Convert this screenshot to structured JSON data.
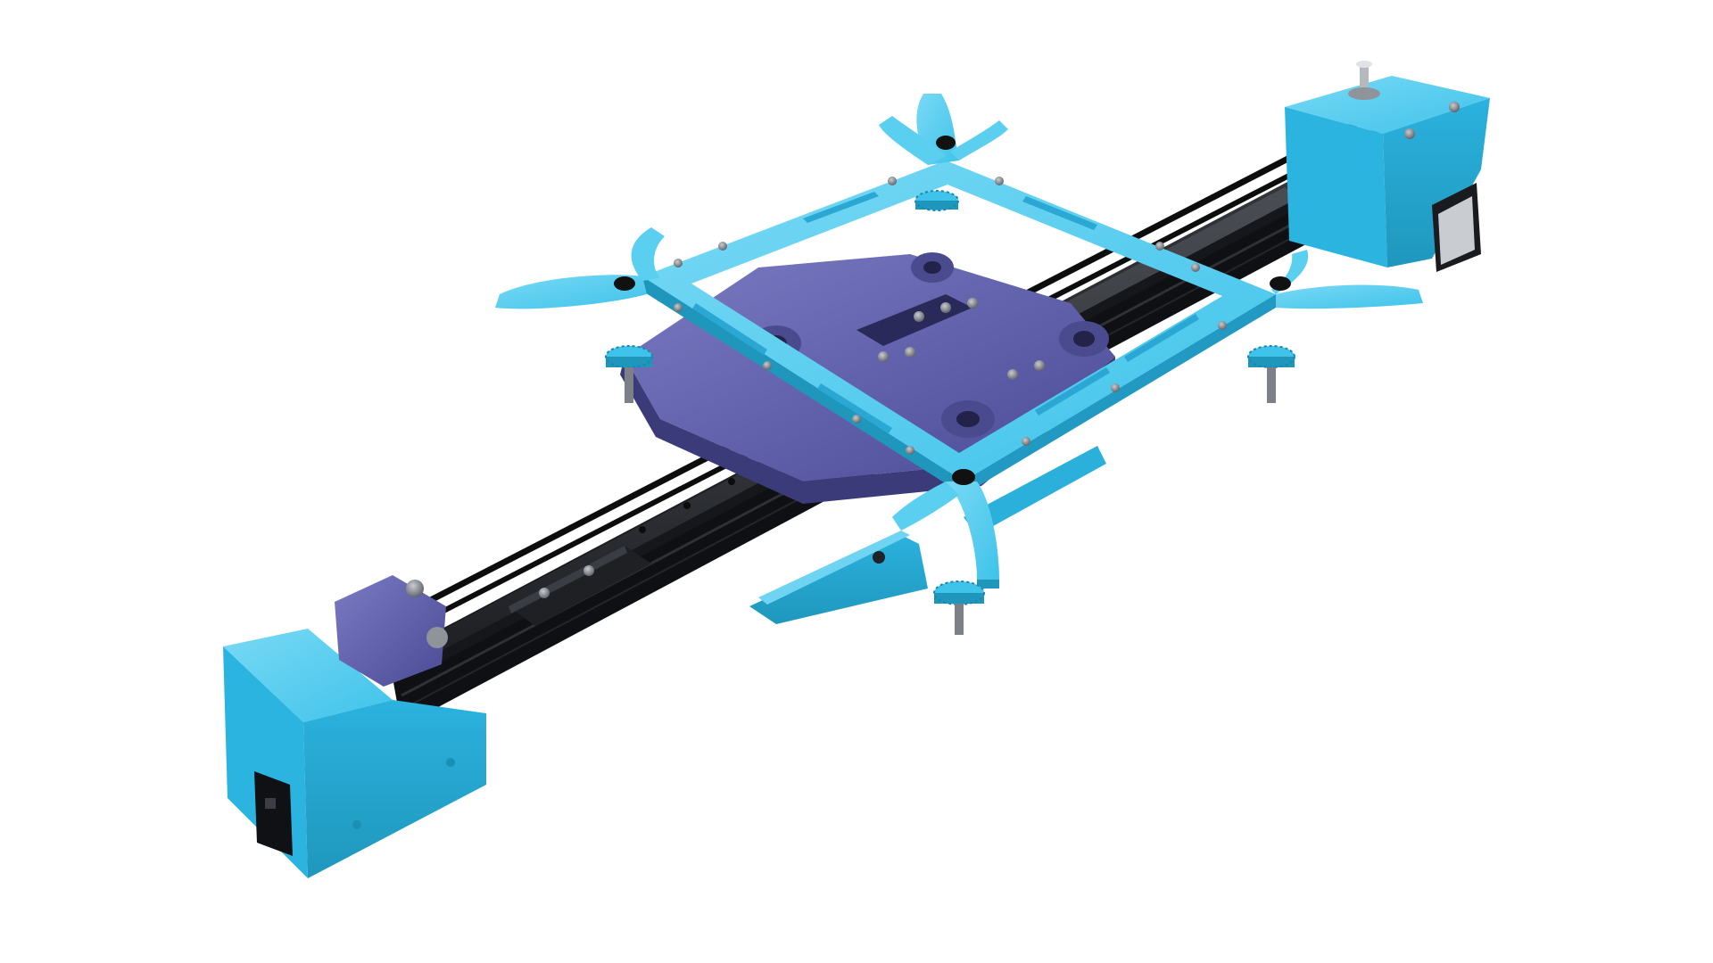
{
  "image": {
    "background": "#ffffff",
    "colors": {
      "print_blue": "#3fc3ea",
      "print_blue_light": "#79d9f5",
      "print_blue_dark": "#1f97bd",
      "print_purple": "#5a5aa8",
      "print_purple_light": "#7b7bc4",
      "print_purple_dark": "#3b3b7a",
      "aluminum_black": "#1c1d20",
      "rail_steel": "#2b2d31",
      "belt": "#0d0d0e",
      "screw_steel": "#8f949a",
      "screw_dark": "#4c5056"
    },
    "parts": [
      "aluminum-extrusion",
      "linear-rail",
      "rail-carriage",
      "timing-belt",
      "motor-end-block",
      "idler-end-block",
      "belt-tensioner",
      "purple-carriage-plate",
      "blue-square-frame",
      "frame-arms",
      "knurled-thumb-nuts",
      "socket-head-screws",
      "lower-blue-bracket",
      "stepper-motor",
      "pulley-shaft"
    ]
  }
}
